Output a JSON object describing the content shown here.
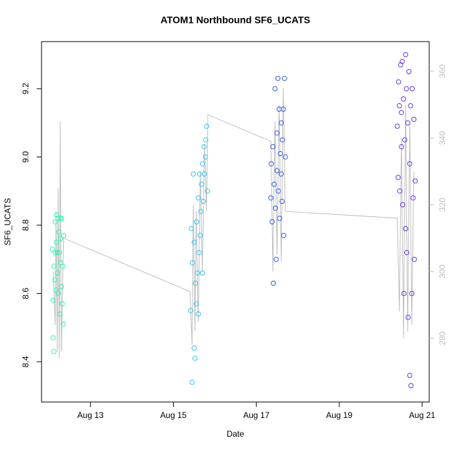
{
  "chart_data": {
    "type": "scatter",
    "title": "ATOM1 Northbound SF6_UCATS",
    "xlabel": "Date",
    "ylabel": "SF6_UCATS",
    "xlim": [
      11.82,
      21.17
    ],
    "xticks": [
      {
        "value": 13,
        "label": "Aug 13"
      },
      {
        "value": 15,
        "label": "Aug 15"
      },
      {
        "value": 17,
        "label": "Aug 17"
      },
      {
        "value": 19,
        "label": "Aug 19"
      },
      {
        "value": 21,
        "label": "Aug 21"
      }
    ],
    "ylim": [
      8.282,
      9.338
    ],
    "yticks": [
      8.4,
      8.6,
      8.8,
      {
        "value": 9,
        "label": "9.0"
      },
      9.2
    ],
    "y2lim": [
      260.9,
      368.9
    ],
    "y2ticks": [
      280,
      300,
      320,
      340,
      360
    ],
    "y2tick_color": "#bebebe",
    "series": [
      {
        "color": "#33f5b5",
        "x": [
          12.08,
          12.1,
          12.1,
          12.12,
          12.12,
          12.14,
          12.15,
          12.15,
          12.17,
          12.18,
          12.18,
          12.2,
          12.2,
          12.22,
          12.22,
          12.24,
          12.25,
          12.26,
          12.27,
          12.28,
          12.28,
          12.3,
          12.3,
          12.32,
          12.33,
          12.34,
          12.35
        ],
        "values": [
          8.73,
          8.58,
          8.47,
          8.68,
          8.43,
          8.64,
          8.72,
          8.81,
          8.61,
          8.75,
          8.83,
          8.72,
          8.66,
          8.82,
          8.6,
          8.78,
          8.72,
          8.54,
          8.82,
          8.69,
          8.76,
          8.62,
          8.82,
          8.57,
          8.68,
          8.51,
          8.77
        ]
      },
      {
        "color": "#30c8f0",
        "x": [
          15.42,
          15.43,
          15.45,
          15.46,
          15.48,
          15.5,
          15.5,
          15.52,
          15.53,
          15.55,
          15.56,
          15.58,
          15.6,
          15.6,
          15.62,
          15.63,
          15.65,
          15.66,
          15.68,
          15.7,
          15.7,
          15.72,
          15.74,
          15.75,
          15.77,
          15.78,
          15.8,
          15.82
        ],
        "values": [
          8.55,
          8.79,
          8.34,
          8.69,
          8.95,
          8.44,
          8.75,
          8.41,
          8.63,
          8.57,
          8.81,
          8.66,
          8.54,
          8.88,
          8.72,
          8.95,
          8.77,
          8.84,
          8.92,
          8.66,
          8.98,
          8.87,
          9.03,
          8.95,
          9.0,
          9.05,
          9.09,
          8.9
        ]
      },
      {
        "color": "#2f5be8",
        "x": [
          17.35,
          17.36,
          17.38,
          17.4,
          17.41,
          17.43,
          17.45,
          17.46,
          17.48,
          17.5,
          17.5,
          17.52,
          17.53,
          17.55,
          17.56,
          17.58,
          17.6,
          17.6,
          17.62,
          17.63,
          17.65,
          17.66,
          17.68,
          17.7
        ],
        "values": [
          8.88,
          8.98,
          8.81,
          9.03,
          8.63,
          8.92,
          9.2,
          8.85,
          8.7,
          9.07,
          8.96,
          9.23,
          8.9,
          9.14,
          8.82,
          9.01,
          8.95,
          9.1,
          8.87,
          9.05,
          9.14,
          8.77,
          9.23,
          9.0
        ]
      },
      {
        "color": "#6a35e6",
        "x": [
          20.4,
          20.42,
          20.43,
          20.45,
          20.46,
          20.48,
          20.5,
          20.5,
          20.52,
          20.53,
          20.55,
          20.56,
          20.58,
          20.6,
          20.6,
          20.62,
          20.63,
          20.65,
          20.66,
          20.68,
          20.7,
          20.7,
          20.72,
          20.73,
          20.75,
          20.76,
          20.78,
          20.8,
          20.81,
          20.83
        ],
        "values": [
          9.09,
          8.94,
          9.22,
          9.15,
          8.9,
          9.27,
          9.13,
          9.03,
          9.28,
          8.86,
          9.17,
          8.6,
          9.05,
          9.3,
          8.79,
          9.2,
          8.72,
          9.1,
          8.53,
          9.25,
          8.36,
          8.98,
          9.15,
          8.33,
          8.6,
          9.2,
          8.88,
          9.11,
          8.7,
          8.93
        ]
      },
      {
        "type": "line",
        "axis": "y2",
        "color": "#bebebe",
        "x": [
          12.1,
          12.15,
          12.17,
          12.2,
          12.22,
          12.25,
          12.27,
          12.3,
          12.35,
          15.4,
          15.45,
          15.48,
          15.52,
          15.55,
          15.6,
          15.65,
          15.7,
          15.75,
          15.8,
          15.83,
          17.35,
          17.4,
          17.45,
          17.5,
          17.55,
          17.6,
          17.65,
          17.7,
          20.4,
          20.45,
          20.5,
          20.55,
          20.6,
          20.65,
          20.7,
          20.75,
          20.8
        ],
        "values": [
          300,
          284,
          318,
          276,
          325,
          274,
          345,
          276,
          310,
          294,
          278,
          320,
          282,
          318,
          285,
          330,
          300,
          338,
          318,
          347,
          339,
          300,
          345,
          305,
          350,
          303,
          355,
          318,
          316,
          288,
          340,
          280,
          350,
          282,
          345,
          284,
          330
        ]
      }
    ]
  }
}
